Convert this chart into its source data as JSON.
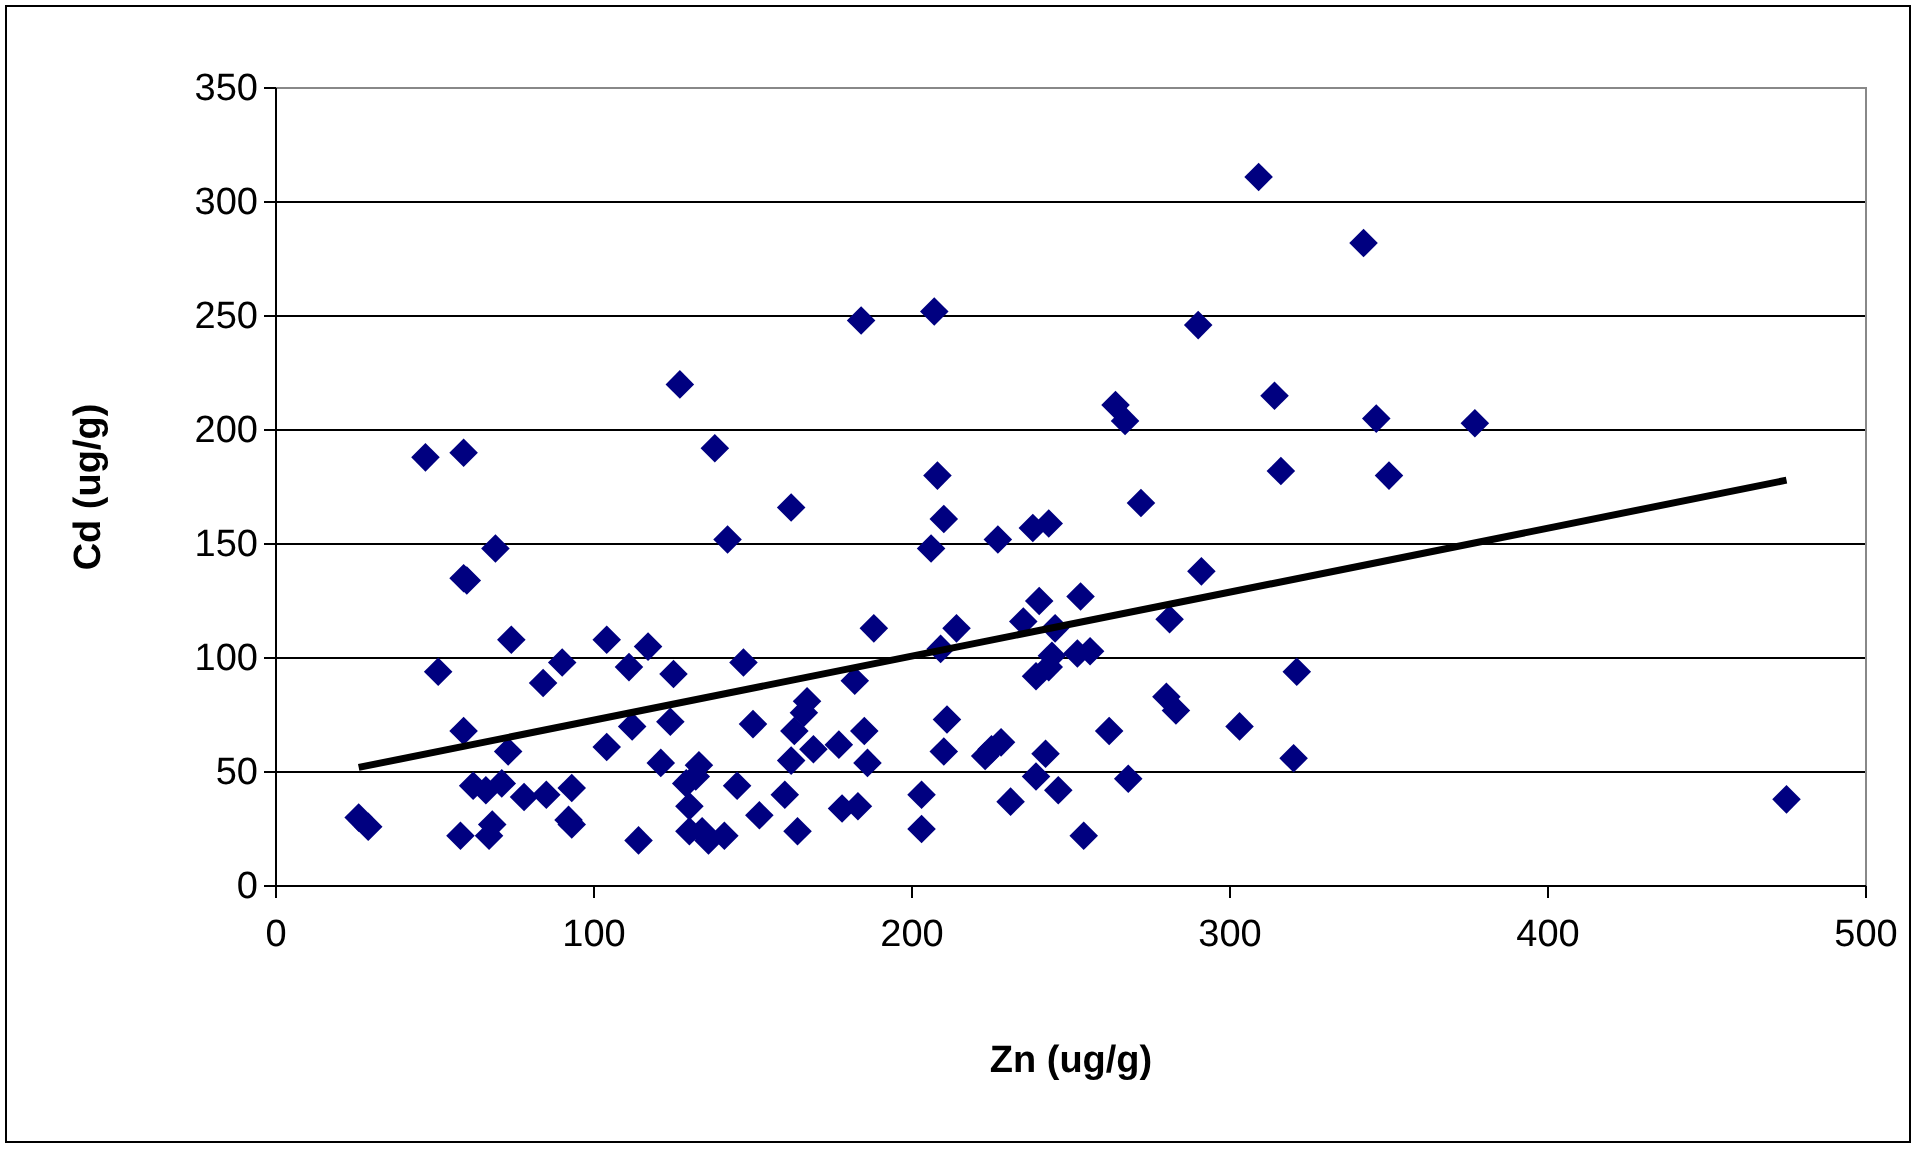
{
  "chart_data": {
    "type": "scatter",
    "xlabel": "Zn (ug/g)",
    "ylabel": "Cd (ug/g)",
    "xlim": [
      0,
      500
    ],
    "ylim": [
      0,
      350
    ],
    "xticks": [
      0,
      100,
      200,
      300,
      400,
      500
    ],
    "yticks": [
      0,
      50,
      100,
      150,
      200,
      250,
      300,
      350
    ],
    "grid": "y",
    "marker": "diamond",
    "series": [
      {
        "color": "#000080",
        "x": [
          26,
          29,
          47,
          51,
          59,
          59,
          60,
          59,
          58,
          62,
          66,
          68,
          67,
          69,
          71,
          73,
          74,
          78,
          84,
          85,
          90,
          92,
          93,
          93,
          104,
          104,
          111,
          112,
          114,
          117,
          121,
          124,
          125,
          127,
          129,
          130,
          130,
          132,
          133,
          134,
          136,
          138,
          141,
          142,
          145,
          147,
          150,
          152,
          160,
          162,
          162,
          163,
          164,
          166,
          167,
          169,
          177,
          178,
          182,
          183,
          184,
          185,
          186,
          188,
          203,
          203,
          206,
          207,
          208,
          209,
          210,
          210,
          211,
          214,
          223,
          225,
          227,
          228,
          231,
          235,
          238,
          239,
          239,
          240,
          242,
          243,
          243,
          244,
          245,
          246,
          252,
          253,
          254,
          256,
          262,
          264,
          267,
          268,
          272,
          280,
          281,
          283,
          290,
          291,
          303,
          309,
          314,
          316,
          320,
          321,
          342,
          346,
          350,
          377,
          475
        ],
        "values": [
          30,
          26,
          188,
          94,
          190,
          135,
          134,
          68,
          22,
          44,
          42,
          27,
          22,
          148,
          45,
          59,
          108,
          39,
          89,
          40,
          98,
          29,
          43,
          27,
          108,
          61,
          96,
          70,
          20,
          105,
          54,
          72,
          93,
          220,
          45,
          24,
          35,
          48,
          53,
          24,
          20,
          192,
          22,
          152,
          44,
          98,
          71,
          31,
          40,
          166,
          55,
          68,
          24,
          76,
          81,
          60,
          62,
          34,
          90,
          35,
          248,
          68,
          54,
          113,
          40,
          25,
          148,
          252,
          180,
          104,
          161,
          59,
          73,
          113,
          57,
          60,
          152,
          63,
          37,
          116,
          157,
          48,
          92,
          125,
          58,
          159,
          96,
          101,
          113,
          42,
          102,
          127,
          22,
          103,
          68,
          211,
          204,
          47,
          168,
          83,
          117,
          77,
          246,
          138,
          70,
          311,
          215,
          182,
          56,
          94,
          282,
          205,
          180,
          203,
          38
        ]
      },
      {
        "type": "line",
        "color": "#000000",
        "marker": "none",
        "x": [
          26,
          475
        ],
        "values": [
          52,
          178
        ]
      }
    ]
  }
}
